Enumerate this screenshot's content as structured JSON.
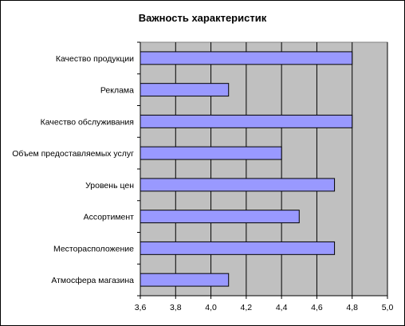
{
  "chart_data": {
    "type": "bar",
    "orientation": "horizontal",
    "title": "Важность характеристик",
    "categories": [
      "Качество продукции",
      "Реклама",
      "Качество обслуживания",
      "Объем предоставляемых услуг",
      "Уровень цен",
      "Ассортимент",
      "Месторасположение",
      "Атмосфера магазина"
    ],
    "values": [
      4.8,
      4.1,
      4.8,
      4.4,
      4.7,
      4.5,
      4.7,
      4.1
    ],
    "xlim": [
      3.6,
      5.0
    ],
    "xticks": [
      "3,6",
      "3,8",
      "4,0",
      "4,2",
      "4,4",
      "4,6",
      "4,8",
      "5,0"
    ],
    "grid": true,
    "legend": "none",
    "colors": {
      "bar_fill": "#9999ff",
      "bar_stroke": "#000000",
      "plot_bg": "#c0c0c0",
      "grid": "#000000"
    }
  }
}
